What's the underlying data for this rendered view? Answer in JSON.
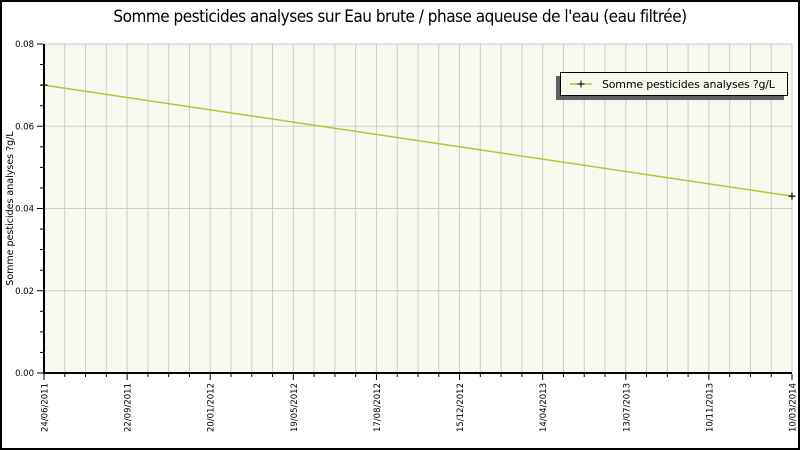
{
  "title": "Somme pesticides analyses sur Eau brute / phase aqueuse de l'eau (eau filtrée)",
  "legend": {
    "label": "Somme pesticides analyses ?g/L"
  },
  "colors": {
    "line": "#a3ce38",
    "plot_bg": "#f8f8ef",
    "grid": "#cccccc",
    "axis": "#000000",
    "marker": "#000000",
    "legend_shadow": "#606060",
    "text": "#000000"
  },
  "chart_data": {
    "type": "line",
    "title": "Somme pesticides analyses sur Eau brute / phase aqueuse de l'eau (eau filtrée)",
    "xlabel": "",
    "ylabel": "Somme pesticides analyses ?g/L",
    "x_tick_labels": [
      "24/06/2011",
      "22/09/2011",
      "20/01/2012",
      "19/05/2012",
      "17/08/2012",
      "15/12/2012",
      "14/04/2013",
      "13/07/2013",
      "10/11/2013",
      "10/03/2014"
    ],
    "y_tick_labels": [
      "0.00",
      "0.02",
      "0.04",
      "0.06",
      "0.08"
    ],
    "ylim": [
      0,
      0.08
    ],
    "y_major_step": 0.02,
    "y_minor_step": 0.005,
    "x_minor_per_major": 4,
    "grid": true,
    "legend_position": "top-right",
    "legend_entries": [
      "Somme pesticides analyses ?g/L"
    ],
    "series": [
      {
        "name": "Somme pesticides analyses ?g/L",
        "marker": "plus",
        "points": [
          {
            "date": "24/06/2011",
            "x_frac": 0.0,
            "y": 0.07
          },
          {
            "date": "10/03/2014",
            "x_frac": 1.0,
            "y": 0.043
          }
        ]
      }
    ]
  }
}
